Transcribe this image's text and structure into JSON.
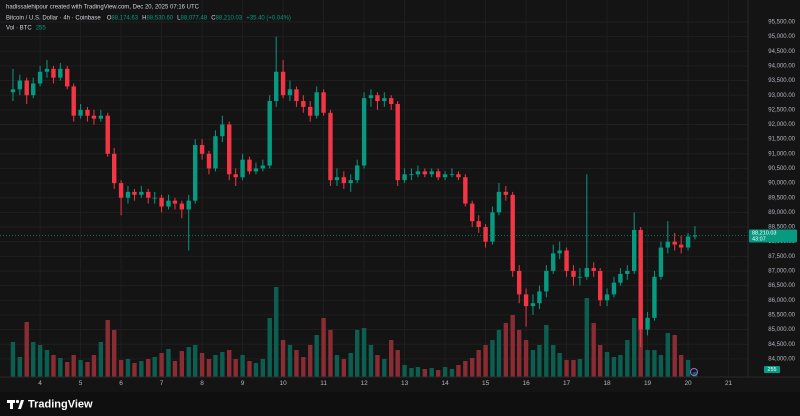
{
  "header": {
    "credit": "hadissalehipour created with TradingView.com, Dec 20, 2025 07:16 UTC",
    "symbol": "Bitcoin / U.S. Dollar · 4h · Coinbase",
    "ohlc": [
      [
        "O",
        "88,174.63"
      ],
      [
        "H",
        "88,530.60"
      ],
      [
        "L",
        "88,077.48"
      ],
      [
        "C",
        "88,210.03"
      ]
    ],
    "change": "+35.40 (+0.04%)",
    "vol_label": "Vol · BTC"
  },
  "footer": "TradingView",
  "chart_data": {
    "type": "candlestick",
    "up_color": "#089981",
    "down_color": "#f23645",
    "volume_up_color": "#0b5e50",
    "volume_down_color": "#8a2c33",
    "xlim": [
      3.01,
      21.48
    ],
    "xticks": [
      4,
      5,
      6,
      7,
      8,
      9,
      10,
      11,
      12,
      13,
      14,
      15,
      16,
      17,
      18,
      19,
      20,
      21
    ],
    "ylim": [
      83380,
      96250
    ],
    "yticks": [
      {
        "value": 84000,
        "label": "84,000.00"
      },
      {
        "value": 84500,
        "label": "84,500.00"
      },
      {
        "value": 85000,
        "label": "85,000.00"
      },
      {
        "value": 85500,
        "label": "85,500.00"
      },
      {
        "value": 86000,
        "label": "86,000.00"
      },
      {
        "value": 86500,
        "label": "86,500.00"
      },
      {
        "value": 87000,
        "label": "87,000.00"
      },
      {
        "value": 87500,
        "label": "87,500.00"
      },
      {
        "value": 88000,
        "label": "88,000.00"
      },
      {
        "value": 88500,
        "label": "88,500.00"
      },
      {
        "value": 89000,
        "label": "89,000.00"
      },
      {
        "value": 89500,
        "label": "89,500.00"
      },
      {
        "value": 90000,
        "label": "90,000.00"
      },
      {
        "value": 90500,
        "label": "90,500.00"
      },
      {
        "value": 91000,
        "label": "91,000.00"
      },
      {
        "value": 91500,
        "label": "91,500.00"
      },
      {
        "value": 92000,
        "label": "92,000.00"
      },
      {
        "value": 92500,
        "label": "92,500.00"
      },
      {
        "value": 93000,
        "label": "93,000.00"
      },
      {
        "value": 93500,
        "label": "93,500.00"
      },
      {
        "value": 94000,
        "label": "94,000.00"
      },
      {
        "value": 94500,
        "label": "94,500.00"
      },
      {
        "value": 95000,
        "label": "95,000.00"
      },
      {
        "value": 95500,
        "label": "95,500.00"
      }
    ],
    "volume_lim": [
      0,
      18850
    ],
    "grid": true,
    "last_price_label": "88,210.03",
    "countdown": "43:07",
    "x": [
      3.33,
      3.5,
      3.67,
      3.83,
      4,
      4.17,
      4.33,
      4.5,
      4.67,
      4.83,
      5,
      5.17,
      5.33,
      5.5,
      5.67,
      5.83,
      6,
      6.17,
      6.33,
      6.5,
      6.67,
      6.83,
      7,
      7.17,
      7.33,
      7.5,
      7.67,
      7.83,
      8,
      8.17,
      8.33,
      8.5,
      8.67,
      8.83,
      9,
      9.17,
      9.33,
      9.5,
      9.67,
      9.83,
      10,
      10.17,
      10.33,
      10.5,
      10.67,
      10.83,
      11,
      11.17,
      11.33,
      11.5,
      11.67,
      11.83,
      12,
      12.17,
      12.33,
      12.5,
      12.67,
      12.83,
      13,
      13.17,
      13.33,
      13.5,
      13.67,
      13.83,
      14,
      14.17,
      14.33,
      14.5,
      14.67,
      14.83,
      15,
      15.17,
      15.33,
      15.5,
      15.67,
      15.83,
      16,
      16.17,
      16.33,
      16.5,
      16.67,
      16.83,
      17,
      17.17,
      17.33,
      17.5,
      17.67,
      17.83,
      18,
      18.17,
      18.33,
      18.5,
      18.67,
      18.83,
      19,
      19.17,
      19.33,
      19.5,
      19.67,
      19.83,
      20,
      20.17
    ],
    "candles": [
      [
        93100,
        93900,
        92800,
        93200
      ],
      [
        93200,
        93700,
        93000,
        93500
      ],
      [
        93500,
        93600,
        92700,
        93000
      ],
      [
        93000,
        93600,
        92900,
        93400
      ],
      [
        93400,
        94000,
        93300,
        93800
      ],
      [
        93800,
        94200,
        93600,
        93900
      ],
      [
        93900,
        94000,
        93400,
        93600
      ],
      [
        93600,
        94100,
        93500,
        93900
      ],
      [
        93900,
        94000,
        93200,
        93300
      ],
      [
        93300,
        93400,
        92100,
        92300
      ],
      [
        92300,
        92700,
        92200,
        92500
      ],
      [
        92500,
        92600,
        92100,
        92300
      ],
      [
        92300,
        92500,
        92000,
        92200
      ],
      [
        92200,
        92500,
        92100,
        92300
      ],
      [
        92300,
        92400,
        90900,
        91000
      ],
      [
        91000,
        91200,
        89800,
        90000
      ],
      [
        90000,
        90100,
        88900,
        89500
      ],
      [
        89500,
        89900,
        89300,
        89700
      ],
      [
        89700,
        89800,
        89400,
        89600
      ],
      [
        89600,
        89900,
        89500,
        89700
      ],
      [
        89700,
        89800,
        89300,
        89500
      ],
      [
        89500,
        89700,
        89300,
        89500
      ],
      [
        89500,
        89600,
        89000,
        89200
      ],
      [
        89200,
        89600,
        89100,
        89400
      ],
      [
        89400,
        89500,
        89100,
        89300
      ],
      [
        89300,
        89400,
        88800,
        89100
      ],
      [
        89100,
        89600,
        87700,
        89400
      ],
      [
        89400,
        91500,
        89300,
        91300
      ],
      [
        91300,
        91500,
        90800,
        91000
      ],
      [
        91000,
        91100,
        90300,
        90500
      ],
      [
        90500,
        91800,
        90400,
        91600
      ],
      [
        91600,
        92300,
        91400,
        92000
      ],
      [
        92000,
        92100,
        90100,
        90300
      ],
      [
        90300,
        90500,
        89900,
        90200
      ],
      [
        90200,
        91000,
        90100,
        90800
      ],
      [
        90800,
        90900,
        90300,
        90400
      ],
      [
        90400,
        90700,
        90300,
        90500
      ],
      [
        90500,
        90800,
        90400,
        90600
      ],
      [
        90600,
        93000,
        90500,
        92800
      ],
      [
        92800,
        95000,
        92600,
        93800
      ],
      [
        93800,
        94200,
        92900,
        93000
      ],
      [
        93000,
        93500,
        92800,
        93200
      ],
      [
        93200,
        93300,
        92600,
        92800
      ],
      [
        92800,
        93000,
        92400,
        92600
      ],
      [
        92600,
        92800,
        92100,
        92300
      ],
      [
        92300,
        93300,
        92200,
        93100
      ],
      [
        93100,
        93200,
        92300,
        92400
      ],
      [
        92400,
        92500,
        89900,
        90100
      ],
      [
        90100,
        90500,
        89900,
        90200
      ],
      [
        90200,
        90400,
        89800,
        90000
      ],
      [
        90000,
        90300,
        89700,
        90100
      ],
      [
        90100,
        90800,
        90000,
        90600
      ],
      [
        90600,
        93100,
        90500,
        92900
      ],
      [
        92900,
        93200,
        92600,
        93000
      ],
      [
        93000,
        93100,
        92500,
        92800
      ],
      [
        92800,
        93100,
        92600,
        92900
      ],
      [
        92900,
        93000,
        92500,
        92700
      ],
      [
        92700,
        92800,
        89900,
        90100
      ],
      [
        90100,
        90500,
        90000,
        90300
      ],
      [
        90300,
        90500,
        90100,
        90300
      ],
      [
        90300,
        90600,
        90200,
        90400
      ],
      [
        90400,
        90500,
        90200,
        90300
      ],
      [
        90300,
        90500,
        90200,
        90400
      ],
      [
        90400,
        90500,
        90100,
        90200
      ],
      [
        90200,
        90400,
        90100,
        90300
      ],
      [
        90300,
        90500,
        90200,
        90300
      ],
      [
        90300,
        90400,
        90100,
        90200
      ],
      [
        90200,
        90300,
        89200,
        89300
      ],
      [
        89300,
        89400,
        88500,
        88700
      ],
      [
        88700,
        88900,
        88300,
        88500
      ],
      [
        88500,
        88600,
        87800,
        88000
      ],
      [
        88000,
        89200,
        87900,
        89000
      ],
      [
        89000,
        90000,
        88900,
        89700
      ],
      [
        89700,
        89900,
        89400,
        89600
      ],
      [
        89600,
        89700,
        86800,
        87000
      ],
      [
        87000,
        87200,
        85900,
        86200
      ],
      [
        86200,
        86400,
        85100,
        85800
      ],
      [
        85800,
        86200,
        85500,
        85900
      ],
      [
        85900,
        86500,
        85700,
        86300
      ],
      [
        86300,
        87200,
        86100,
        87000
      ],
      [
        87000,
        87900,
        86900,
        87600
      ],
      [
        87600,
        88000,
        87400,
        87700
      ],
      [
        87700,
        87800,
        86800,
        87000
      ],
      [
        87000,
        87200,
        86500,
        86800
      ],
      [
        86800,
        87100,
        86500,
        86800
      ],
      [
        86800,
        90300,
        86700,
        87100
      ],
      [
        87100,
        87300,
        86800,
        87000
      ],
      [
        87000,
        87100,
        85800,
        86000
      ],
      [
        86000,
        86400,
        85800,
        86200
      ],
      [
        86200,
        86800,
        86100,
        86600
      ],
      [
        86600,
        87100,
        86500,
        86900
      ],
      [
        86900,
        87200,
        86700,
        87000
      ],
      [
        87000,
        89000,
        86900,
        88400
      ],
      [
        88400,
        88500,
        84400,
        85000
      ],
      [
        85000,
        85600,
        84800,
        85400
      ],
      [
        85400,
        87000,
        85300,
        86800
      ],
      [
        86800,
        88000,
        86700,
        87800
      ],
      [
        87800,
        88700,
        87600,
        88000
      ],
      [
        88000,
        88300,
        87700,
        87900
      ],
      [
        87900,
        88200,
        87600,
        87800
      ],
      [
        87800,
        88300,
        87700,
        88174.63
      ],
      [
        88174.63,
        88530.6,
        88077.48,
        88210.03
      ]
    ],
    "volume": [
      1750,
      1000,
      2750,
      1750,
      1600,
      1350,
      1100,
      950,
      750,
      1100,
      850,
      750,
      1100,
      1750,
      2850,
      2350,
      850,
      900,
      700,
      800,
      900,
      1000,
      1200,
      1400,
      800,
      1300,
      1500,
      1600,
      1200,
      900,
      1100,
      1250,
      1350,
      900,
      1100,
      800,
      700,
      900,
      2950,
      4500,
      1850,
      1600,
      1350,
      1000,
      1600,
      2100,
      2950,
      2350,
      1100,
      900,
      1200,
      2350,
      2450,
      1600,
      1100,
      900,
      1850,
      1350,
      600,
      450,
      500,
      400,
      450,
      350,
      500,
      400,
      600,
      800,
      950,
      1350,
      1600,
      1850,
      2350,
      2700,
      3100,
      2350,
      1850,
      1350,
      1600,
      2600,
      1600,
      1200,
      850,
      850,
      900,
      3950,
      2700,
      1600,
      1250,
      1000,
      1100,
      1850,
      2950,
      2950,
      1350,
      1350,
      1100,
      2200,
      2100,
      1100,
      850,
      255
    ]
  }
}
